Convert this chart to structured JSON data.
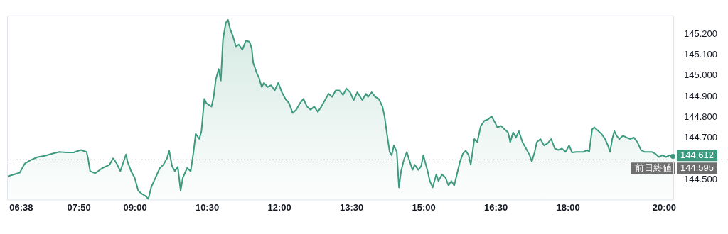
{
  "chart_data": {
    "type": "area",
    "legend": false,
    "grid": false,
    "marker": "none",
    "line_style": "solid",
    "xlim": [
      6.34,
      20.2
    ],
    "xticks": [
      {
        "value": 6.633,
        "label": "06:38"
      },
      {
        "value": 7.833,
        "label": "07:50"
      },
      {
        "value": 9,
        "label": "09:00"
      },
      {
        "value": 10.5,
        "label": "10:30"
      },
      {
        "value": 12,
        "label": "12:00"
      },
      {
        "value": 13.5,
        "label": "13:30"
      },
      {
        "value": 15,
        "label": "15:00"
      },
      {
        "value": 16.5,
        "label": "16:30"
      },
      {
        "value": 18,
        "label": "18:00"
      },
      {
        "value": 20,
        "label": "20:00"
      }
    ],
    "ylim": [
      144.4,
      145.29
    ],
    "yticks": [
      {
        "value": 144.5,
        "label": "144.500"
      },
      {
        "value": 144.7,
        "label": "144.700"
      },
      {
        "value": 144.8,
        "label": "144.800"
      },
      {
        "value": 144.9,
        "label": "144.900"
      },
      {
        "value": 145.0,
        "label": "145.000"
      },
      {
        "value": 145.1,
        "label": "145.100"
      },
      {
        "value": 145.2,
        "label": "145.200"
      }
    ],
    "ref_lines": [
      {
        "axis": "y",
        "value": 144.595,
        "label": "前日終値",
        "line_style": "dotted",
        "color": "#9e9e9e"
      }
    ],
    "annotations": [
      "144.612",
      "144.595"
    ],
    "series": [
      {
        "color": "#3c9a7e",
        "x": [
          6.349,
          6.603,
          6.708,
          6.827,
          6.976,
          7.126,
          7.275,
          7.424,
          7.573,
          7.723,
          7.872,
          7.991,
          8.021,
          8.066,
          8.17,
          8.32,
          8.469,
          8.543,
          8.618,
          8.693,
          8.812,
          8.842,
          8.917,
          8.991,
          9.066,
          9.14,
          9.215,
          9.275,
          9.334,
          9.394,
          9.514,
          9.588,
          9.663,
          9.708,
          9.767,
          9.827,
          9.887,
          9.946,
          9.991,
          10.081,
          10.155,
          10.215,
          10.26,
          10.334,
          10.379,
          10.439,
          10.484,
          10.588,
          10.633,
          10.678,
          10.737,
          10.782,
          10.827,
          10.887,
          10.931,
          10.976,
          11.036,
          11.096,
          11.155,
          11.23,
          11.304,
          11.379,
          11.424,
          11.454,
          11.528,
          11.573,
          11.633,
          11.678,
          11.752,
          11.827,
          11.902,
          11.976,
          12.051,
          12.125,
          12.2,
          12.275,
          12.349,
          12.424,
          12.499,
          12.573,
          12.648,
          12.723,
          12.797,
          12.872,
          12.946,
          13.021,
          13.096,
          13.17,
          13.245,
          13.32,
          13.394,
          13.469,
          13.543,
          13.618,
          13.723,
          13.797,
          13.842,
          13.917,
          13.991,
          14.066,
          14.141,
          14.185,
          14.23,
          14.26,
          14.29,
          14.334,
          14.379,
          14.439,
          14.484,
          14.528,
          14.588,
          14.648,
          14.708,
          14.767,
          14.812,
          14.887,
          14.946,
          14.991,
          15.036,
          15.081,
          15.125,
          15.185,
          15.26,
          15.305,
          15.379,
          15.454,
          15.514,
          15.573,
          15.633,
          15.752,
          15.812,
          15.872,
          15.932,
          15.976,
          16.051,
          16.111,
          16.185,
          16.26,
          16.335,
          16.409,
          16.484,
          16.529,
          16.603,
          16.678,
          16.752,
          16.797,
          16.857,
          16.917,
          16.976,
          17.051,
          17.126,
          17.2,
          17.245,
          17.305,
          17.35,
          17.424,
          17.499,
          17.573,
          17.648,
          17.723,
          17.797,
          17.872,
          17.946,
          18.021,
          18.081,
          18.17,
          18.32,
          18.394,
          18.439,
          18.499,
          18.544,
          18.588,
          18.693,
          18.767,
          18.827,
          18.872,
          18.917,
          18.961,
          19.006,
          19.066,
          19.14,
          19.215,
          19.29,
          19.364,
          19.439,
          19.514,
          19.588,
          19.663,
          19.737,
          19.812,
          19.887,
          19.961,
          20.036,
          20.111,
          20.185
        ],
        "values": [
          144.515,
          144.533,
          144.577,
          144.593,
          144.608,
          144.614,
          144.624,
          144.633,
          144.63,
          144.63,
          144.642,
          144.633,
          144.602,
          144.54,
          144.53,
          144.555,
          144.571,
          144.602,
          144.577,
          144.54,
          144.621,
          144.586,
          144.54,
          144.508,
          144.446,
          144.431,
          144.421,
          144.406,
          144.462,
          144.493,
          144.555,
          144.571,
          144.602,
          144.639,
          144.565,
          144.54,
          144.561,
          144.446,
          144.508,
          144.555,
          144.54,
          144.633,
          144.72,
          144.695,
          144.733,
          144.888,
          144.867,
          144.851,
          144.898,
          144.982,
          145.032,
          144.976,
          145.175,
          145.256,
          145.269,
          145.225,
          145.188,
          145.141,
          145.15,
          145.125,
          145.169,
          145.163,
          145.131,
          145.063,
          145.013,
          144.991,
          144.945,
          144.966,
          144.945,
          144.954,
          144.929,
          144.966,
          144.92,
          144.888,
          144.867,
          144.82,
          144.836,
          144.867,
          144.888,
          144.851,
          144.836,
          144.851,
          144.826,
          144.851,
          144.882,
          144.913,
          144.898,
          144.929,
          144.929,
          144.907,
          144.938,
          144.92,
          144.882,
          144.92,
          144.882,
          144.913,
          144.898,
          144.92,
          144.898,
          144.888,
          144.851,
          144.804,
          144.727,
          144.68,
          144.633,
          144.617,
          144.664,
          144.633,
          144.462,
          144.54,
          144.596,
          144.633,
          144.586,
          144.546,
          144.571,
          144.546,
          144.565,
          144.617,
          144.577,
          144.54,
          144.493,
          144.462,
          144.524,
          144.493,
          144.524,
          144.508,
          144.471,
          144.493,
          144.471,
          144.586,
          144.624,
          144.639,
          144.617,
          144.571,
          144.695,
          144.68,
          144.758,
          144.783,
          144.789,
          144.804,
          144.773,
          144.751,
          144.758,
          144.742,
          144.727,
          144.68,
          144.727,
          144.702,
          144.733,
          144.68,
          144.649,
          144.617,
          144.586,
          144.633,
          144.68,
          144.695,
          144.664,
          144.674,
          144.695,
          144.649,
          144.642,
          144.649,
          144.633,
          144.664,
          144.63,
          144.633,
          144.633,
          144.642,
          144.633,
          144.742,
          144.751,
          144.742,
          144.72,
          144.695,
          144.664,
          144.633,
          144.695,
          144.733,
          144.711,
          144.695,
          144.711,
          144.702,
          144.695,
          144.702,
          144.68,
          144.642,
          144.633,
          144.633,
          144.633,
          144.624,
          144.608,
          144.617,
          144.608,
          144.617,
          144.612
        ]
      }
    ]
  }
}
